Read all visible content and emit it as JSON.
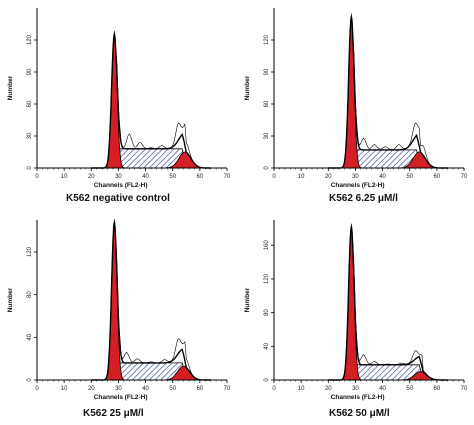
{
  "chart_data": [
    {
      "type": "area",
      "caption": "K562  negative control",
      "xlabel": "Channels (FL2-H)",
      "ylabel": "Number",
      "xlim": [
        0,
        70
      ],
      "ylim": [
        0,
        150
      ],
      "xticks": [
        0,
        10,
        20,
        30,
        40,
        50,
        60,
        70
      ],
      "yticks": [
        0,
        30,
        60,
        90,
        120
      ],
      "components": {
        "g1_peak": {
          "center": 28.5,
          "sigma": 1.0,
          "height": 126
        },
        "g2_peak": {
          "center": 54.5,
          "sigma": 2.2,
          "height": 15
        },
        "s_phase": {
          "start": 29,
          "end": 55,
          "level": 18
        }
      },
      "histogram_noise": [
        {
          "x": 34,
          "y": 32
        },
        {
          "x": 38,
          "y": 24
        },
        {
          "x": 42,
          "y": 19
        },
        {
          "x": 46,
          "y": 21
        },
        {
          "x": 52,
          "y": 34
        },
        {
          "x": 55,
          "y": 27
        }
      ],
      "colors": {
        "fill": "#d31f25",
        "hatch": "#1f3a8a",
        "line": "#000000"
      }
    },
    {
      "type": "area",
      "caption": "K562  6.25 μM/l",
      "xlabel": "Channels (FL2-H)",
      "ylabel": "Number",
      "xlim": [
        0,
        70
      ],
      "ylim": [
        0,
        150
      ],
      "xticks": [
        0,
        10,
        20,
        30,
        40,
        50,
        60,
        70
      ],
      "yticks": [
        0,
        30,
        60,
        90,
        120
      ],
      "components": {
        "g1_peak": {
          "center": 28.5,
          "sigma": 1.0,
          "height": 142
        },
        "g2_peak": {
          "center": 53.5,
          "sigma": 2.2,
          "height": 15
        },
        "s_phase": {
          "start": 29,
          "end": 54,
          "level": 17
        }
      },
      "histogram_noise": [
        {
          "x": 33,
          "y": 28
        },
        {
          "x": 37,
          "y": 22
        },
        {
          "x": 41,
          "y": 20
        },
        {
          "x": 46,
          "y": 22
        },
        {
          "x": 52,
          "y": 30
        },
        {
          "x": 55,
          "y": 26
        }
      ],
      "colors": {
        "fill": "#d31f25",
        "hatch": "#1f3a8a",
        "line": "#000000"
      }
    },
    {
      "type": "area",
      "caption": "K562  25 μM/l",
      "xlabel": "Channels (FL2-H)",
      "ylabel": "Number",
      "xlim": [
        0,
        70
      ],
      "ylim": [
        0,
        150
      ],
      "xticks": [
        0,
        10,
        20,
        30,
        40,
        50,
        60,
        70
      ],
      "yticks": [
        0,
        40,
        80,
        120
      ],
      "components": {
        "g1_peak": {
          "center": 28.5,
          "sigma": 1.0,
          "height": 148
        },
        "g2_peak": {
          "center": 54,
          "sigma": 2.2,
          "height": 13
        },
        "s_phase": {
          "start": 29,
          "end": 55,
          "level": 16
        }
      },
      "histogram_noise": [
        {
          "x": 33,
          "y": 26
        },
        {
          "x": 37,
          "y": 20
        },
        {
          "x": 42,
          "y": 17
        },
        {
          "x": 47,
          "y": 19
        },
        {
          "x": 52,
          "y": 30
        },
        {
          "x": 55,
          "y": 24
        }
      ],
      "colors": {
        "fill": "#d31f25",
        "hatch": "#1f3a8a",
        "line": "#000000"
      }
    },
    {
      "type": "area",
      "caption": "K562  50 μM/l",
      "xlabel": "Channels (FL2-H)",
      "ylabel": "Number",
      "xlim": [
        0,
        70
      ],
      "ylim": [
        0,
        190
      ],
      "xticks": [
        0,
        10,
        20,
        30,
        40,
        50,
        60,
        70
      ],
      "yticks": [
        0,
        40,
        80,
        120,
        160
      ],
      "components": {
        "g1_peak": {
          "center": 28.5,
          "sigma": 1.0,
          "height": 182
        },
        "g2_peak": {
          "center": 54,
          "sigma": 2.2,
          "height": 10
        },
        "s_phase": {
          "start": 29,
          "end": 55,
          "level": 18
        }
      },
      "histogram_noise": [
        {
          "x": 33,
          "y": 30
        },
        {
          "x": 37,
          "y": 22
        },
        {
          "x": 42,
          "y": 19
        },
        {
          "x": 47,
          "y": 20
        },
        {
          "x": 52,
          "y": 28
        },
        {
          "x": 55,
          "y": 20
        }
      ],
      "colors": {
        "fill": "#d31f25",
        "hatch": "#1f3a8a",
        "line": "#000000"
      }
    }
  ]
}
